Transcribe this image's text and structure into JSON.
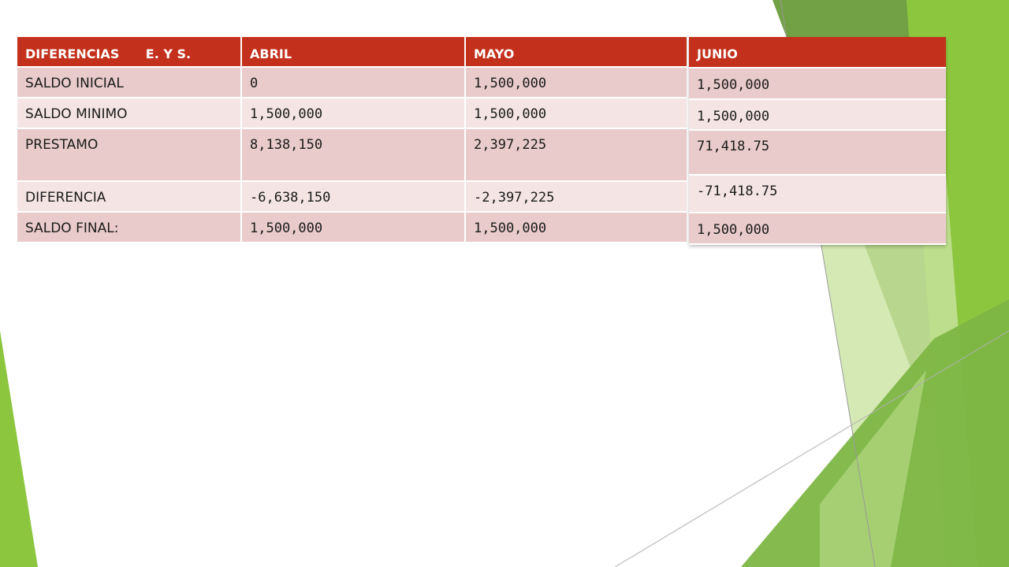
{
  "table": {
    "headers": [
      "DIFERENCIAS      E. Y S.",
      "ABRIL",
      "MAYO"
    ],
    "rows": [
      [
        "SALDO INICIAL",
        "0",
        "1,500,000"
      ],
      [
        "SALDO MINIMO",
        "1,500,000",
        "1,500,000"
      ],
      [
        "PRESTAMO",
        "8,138,150",
        "2,397,225"
      ],
      [
        "DIFERENCIA",
        "-6,638,150",
        "-2,397,225"
      ],
      [
        "SALDO FINAL:",
        "1,500,000",
        "1,500,000"
      ]
    ]
  },
  "junio": {
    "header": "JUNIO",
    "values": [
      "1,500,000",
      "1,500,000",
      "71,418.75",
      "-71,418.75",
      "1,500,000"
    ]
  },
  "colors": {
    "header_bg": "#c3301b",
    "row_dark": "#e9cbcb",
    "row_light": "#f4e5e4",
    "accent_green": "#8cc63f"
  }
}
